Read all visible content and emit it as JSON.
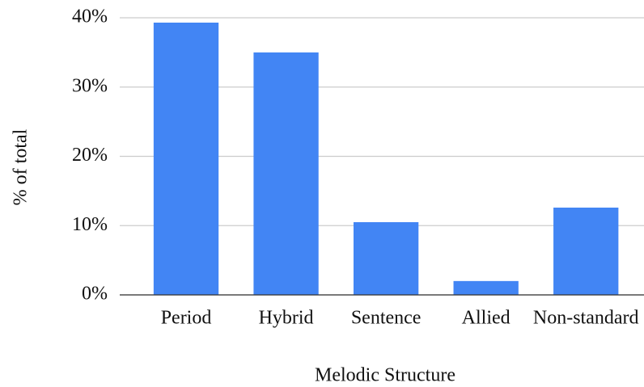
{
  "chart_data": {
    "type": "bar",
    "xlabel": "Melodic Structure",
    "ylabel": "% of total",
    "categories": [
      "Period",
      "Hybrid",
      "Sentence",
      "Allied",
      "Non-standard"
    ],
    "values": [
      39.3,
      35.0,
      10.5,
      2.0,
      12.6
    ],
    "color": "#4285f4",
    "ylim": [
      0,
      40
    ],
    "yticks": [
      {
        "value": 0,
        "label": "0%"
      },
      {
        "value": 10,
        "label": "10%"
      },
      {
        "value": 20,
        "label": "20%"
      },
      {
        "value": 30,
        "label": "30%"
      },
      {
        "value": 40,
        "label": "40%"
      }
    ],
    "grid": true
  }
}
